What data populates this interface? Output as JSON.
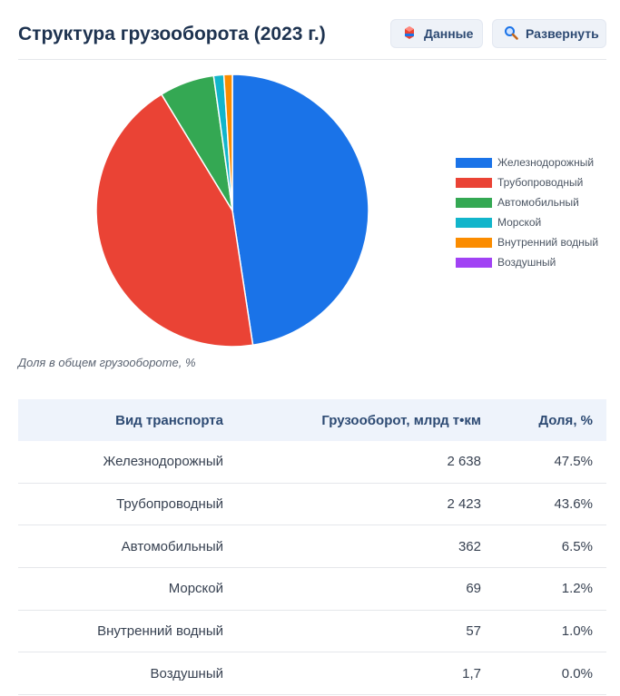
{
  "header": {
    "title": "Структура грузооборота (2023 г.)",
    "data_button_label": "Данные",
    "expand_button_label": "Развернуть"
  },
  "chart_data": {
    "type": "pie",
    "categories": [
      "Железнодорожный",
      "Трубопроводный",
      "Автомобильный",
      "Морской",
      "Внутренний водный",
      "Воздушный"
    ],
    "values": [
      47.5,
      43.6,
      6.5,
      1.2,
      1.0,
      0.0
    ],
    "colors": [
      "#1a73e8",
      "#ea4335",
      "#34a853",
      "#12b5cb",
      "#fb8c00",
      "#a142f4"
    ],
    "legend_position": "right",
    "caption": "Доля в общем грузообороте, %"
  },
  "table": {
    "headers": [
      "Вид транспорта",
      "Грузооборот, млрд т•км",
      "Доля, %"
    ],
    "rows": [
      {
        "type": "Железнодорожный",
        "volume": "2 638",
        "share": "47.5%"
      },
      {
        "type": "Трубопроводный",
        "volume": "2 423",
        "share": "43.6%"
      },
      {
        "type": "Автомобильный",
        "volume": "362",
        "share": "6.5%"
      },
      {
        "type": "Морской",
        "volume": "69",
        "share": "1.2%"
      },
      {
        "type": "Внутренний водный",
        "volume": "57",
        "share": "1.0%"
      },
      {
        "type": "Воздушный",
        "volume": "1,7",
        "share": "0.0%"
      }
    ]
  }
}
